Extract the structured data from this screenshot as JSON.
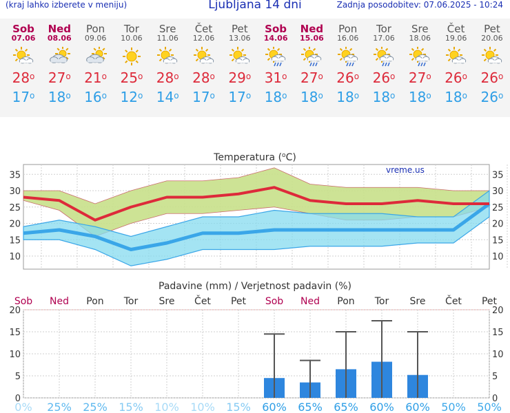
{
  "header": {
    "menu_hint": "(kraj lahko izberete v meniju)",
    "title": "Ljubljana 14 dni",
    "updated": "Zadnja posodobitev: 07.06.2025 - 10:24"
  },
  "days": [
    {
      "name": "Sob",
      "date": "07.06",
      "icon": "sun-cloud-icon",
      "tmax": "28",
      "tmin": "17",
      "kind": "hl"
    },
    {
      "name": "Ned",
      "date": "08.06",
      "icon": "cloudy-sun-icon",
      "tmax": "27",
      "tmin": "18",
      "kind": "hl"
    },
    {
      "name": "Pon",
      "date": "09.06",
      "icon": "cloudy-sun-icon",
      "tmax": "21",
      "tmin": "16",
      "kind": "weekday"
    },
    {
      "name": "Tor",
      "date": "10.06",
      "icon": "sun-icon",
      "tmax": "25",
      "tmin": "12",
      "kind": "weekday"
    },
    {
      "name": "Sre",
      "date": "11.06",
      "icon": "sun-cloud-icon",
      "tmax": "28",
      "tmin": "14",
      "kind": "weekday"
    },
    {
      "name": "Čet",
      "date": "12.06",
      "icon": "sun-cloud-icon",
      "tmax": "28",
      "tmin": "17",
      "kind": "weekday"
    },
    {
      "name": "Pet",
      "date": "13.06",
      "icon": "sun-cloud-icon",
      "tmax": "29",
      "tmin": "17",
      "kind": "weekday"
    },
    {
      "name": "Sob",
      "date": "14.06",
      "icon": "sun-rain-icon",
      "tmax": "31",
      "tmin": "18",
      "kind": "hl"
    },
    {
      "name": "Ned",
      "date": "15.06",
      "icon": "sun-rain-icon",
      "tmax": "27",
      "tmin": "18",
      "kind": "hl"
    },
    {
      "name": "Pon",
      "date": "16.06",
      "icon": "sun-rain-icon",
      "tmax": "26",
      "tmin": "18",
      "kind": "weekday"
    },
    {
      "name": "Tor",
      "date": "17.06",
      "icon": "sun-rain-icon",
      "tmax": "26",
      "tmin": "18",
      "kind": "weekday"
    },
    {
      "name": "Sre",
      "date": "18.06",
      "icon": "sun-rain-icon",
      "tmax": "27",
      "tmin": "18",
      "kind": "weekday"
    },
    {
      "name": "Čet",
      "date": "19.06",
      "icon": "sun-cloud-icon",
      "tmax": "26",
      "tmin": "18",
      "kind": "weekday"
    },
    {
      "name": "Pet",
      "date": "20.06",
      "icon": "sun-cloud-icon",
      "tmax": "26",
      "tmin": "26",
      "kind": "weekday"
    }
  ],
  "deg_symbol": "o",
  "colors": {
    "tmax": "#dd2a3a",
    "tmin": "#2e9ee6",
    "max_band": "#c8e08a",
    "min_band": "#86dbef",
    "overlap": "#74c66e",
    "bar": "#2e86de",
    "weekend": "#b00050"
  },
  "chart_data": [
    {
      "type": "line",
      "title": "Temperatura (oC)",
      "watermark": "vreme.us",
      "x": [
        "Sob",
        "Ned",
        "Pon",
        "Tor",
        "Sre",
        "Čet",
        "Pet",
        "Sob",
        "Ned",
        "Pon",
        "Tor",
        "Sre",
        "Čet",
        "Pet"
      ],
      "ylim": [
        6,
        38
      ],
      "yticks": [
        10,
        15,
        20,
        25,
        30,
        35
      ],
      "grid": true,
      "series": [
        {
          "values": [
            28,
            27,
            21,
            25,
            28,
            28,
            29,
            31,
            27,
            26,
            26,
            27,
            26,
            26
          ]
        },
        {
          "values": [
            17,
            18,
            16,
            12,
            14,
            17,
            17,
            18,
            18,
            18,
            18,
            18,
            18,
            26
          ]
        }
      ],
      "bands": [
        {
          "upper": [
            30,
            30,
            26,
            30,
            33,
            33,
            34,
            37,
            32,
            31,
            31,
            31,
            30,
            30
          ],
          "lower": [
            27,
            24,
            16,
            20,
            23,
            23,
            24,
            25,
            23,
            21,
            21,
            22,
            22,
            25
          ]
        },
        {
          "upper": [
            19,
            21,
            19,
            16,
            19,
            22,
            22,
            24,
            23,
            23,
            23,
            22,
            22,
            30
          ],
          "lower": [
            15,
            15,
            12,
            7,
            9,
            12,
            12,
            12,
            13,
            13,
            13,
            14,
            14,
            22
          ]
        }
      ]
    },
    {
      "type": "bar",
      "title": "Padavine (mm) / Verjetnost padavin (%)",
      "categories": [
        "Sob",
        "Ned",
        "Pon",
        "Tor",
        "Sre",
        "Čet",
        "Pet",
        "Sob",
        "Ned",
        "Pon",
        "Tor",
        "Sre",
        "Čet",
        "Pet"
      ],
      "ylim": [
        0,
        20
      ],
      "yticks": [
        0,
        5,
        10,
        15,
        20
      ],
      "values": [
        0,
        0,
        0,
        0,
        0,
        0,
        0,
        4.5,
        3.5,
        6.5,
        8.2,
        5.2,
        0,
        0
      ],
      "error_max": [
        null,
        null,
        null,
        null,
        null,
        null,
        null,
        14.5,
        8.5,
        15,
        17.5,
        15,
        null,
        null
      ],
      "probability_labels": [
        "0%",
        "25%",
        "25%",
        "15%",
        "10%",
        "10%",
        "15%",
        "60%",
        "65%",
        "65%",
        "60%",
        "60%",
        "50%",
        "50%"
      ],
      "probability_values": [
        0,
        25,
        25,
        15,
        10,
        10,
        15,
        60,
        65,
        65,
        60,
        60,
        50,
        50
      ]
    }
  ]
}
